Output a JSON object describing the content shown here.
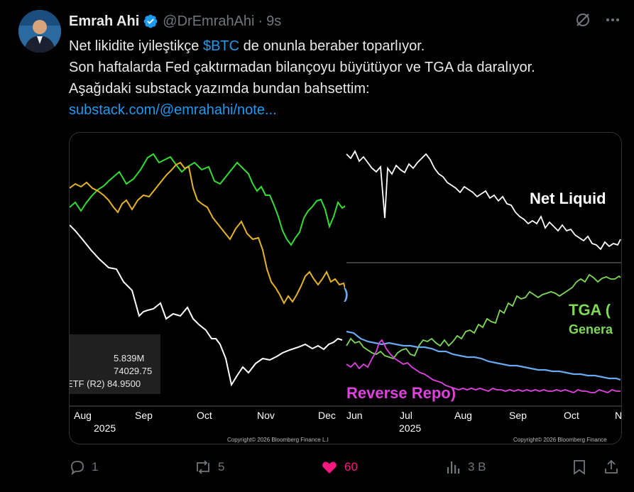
{
  "tweet": {
    "author_name": "Emrah Ahi",
    "handle": "@DrEmrahAhi",
    "separator": "·",
    "time": "9s",
    "line1_pre": "Net likidite iyileştikçe ",
    "cashtag": "$BTC",
    "line1_post": " de onunla beraber toparlıyor.",
    "line2": "Son haftalarda Fed çaktırmadan bilançoyu büyütüyor ve TGA da daralıyor.",
    "line3": "Aşağıdaki substack yazımda bundan bahsettim:",
    "link": "substack.com/@emrahahi/note..."
  },
  "left_chart": {
    "legend_lines": [
      "5.839M",
      "74029.75",
      "ETF  (R2) 84.9500"
    ],
    "x_ticks": [
      "Aug",
      "Sep",
      "Oct",
      "Nov",
      "Dec"
    ],
    "year": "2025",
    "copyright": "Copyright© 2026 Bloomberg Finance L.I"
  },
  "right_chart": {
    "label_net_liquidity": "Net Liquid",
    "label_tga": "TGA (",
    "label_tga_sub": "Genera",
    "label_reverse_repo": "Reverse Repo)",
    "label_blue_fragment": ")",
    "x_ticks": [
      "Jun",
      "Jul",
      "Aug",
      "Sep",
      "Oct",
      "N"
    ],
    "year": "2025",
    "copyright": "Copyright© 2026 Bloomberg Finance"
  },
  "actions": {
    "replies": "1",
    "reposts": "5",
    "likes": "60",
    "views": "3 B"
  },
  "colors": {
    "link": "#1d9bf0",
    "like": "#f91880",
    "btc_green": "#33dd33",
    "yellow": "#e6b422",
    "tga_green": "#7ed957",
    "repo_magenta": "#e040e0",
    "blue_series": "#6aa8f0",
    "verified": "#1d9bf0"
  }
}
